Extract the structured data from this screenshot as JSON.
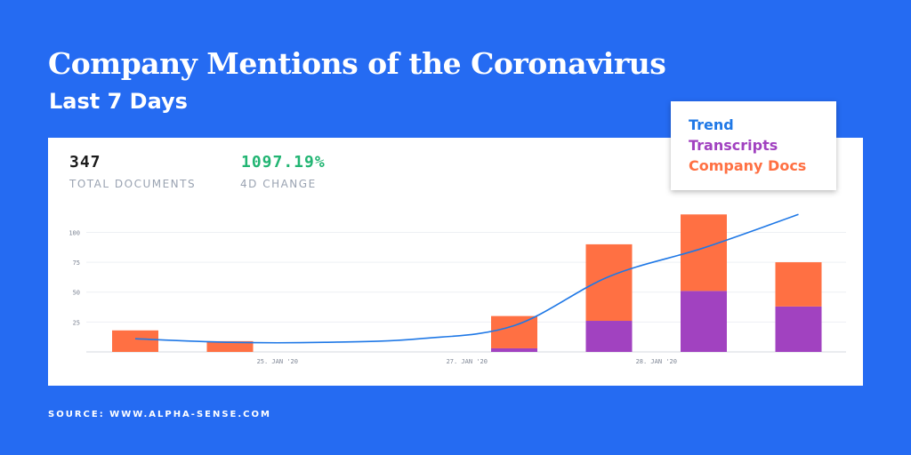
{
  "header": {
    "title": "Company Mentions of the Coronavirus",
    "subtitle": "Last 7 Days"
  },
  "stats": {
    "total_value": "347",
    "total_label": "TOTAL DOCUMENTS",
    "change_value": "1097.19%",
    "change_label": "4D CHANGE"
  },
  "source": "SOURCE: WWW.ALPHA-SENSE.COM",
  "colors": {
    "trend": "#1f78e6",
    "transcripts": "#a142c0",
    "company_docs": "#ff7043",
    "change": "#22b573",
    "dark_text": "#1c1c1c"
  },
  "chart_data": {
    "type": "bar",
    "stacked": true,
    "ylim": [
      0,
      110
    ],
    "yticks": [
      25,
      50,
      75,
      100
    ],
    "grid": true,
    "legend_position": "top-right",
    "x_tick_labels": [
      {
        "index": 1.5,
        "label": "25. JAN '20"
      },
      {
        "index": 3.5,
        "label": "27. JAN '20"
      },
      {
        "index": 5.5,
        "label": "28. JAN '20"
      }
    ],
    "series": [
      {
        "name": "Transcripts",
        "values": [
          0,
          0,
          null,
          null,
          3,
          26,
          51,
          38
        ]
      },
      {
        "name": "Company Docs",
        "values": [
          18,
          9,
          null,
          null,
          27,
          64,
          64,
          37
        ]
      },
      {
        "name": "Trend",
        "type": "line",
        "values": [
          11,
          8,
          8,
          11,
          22,
          63,
          87,
          115
        ]
      }
    ]
  }
}
